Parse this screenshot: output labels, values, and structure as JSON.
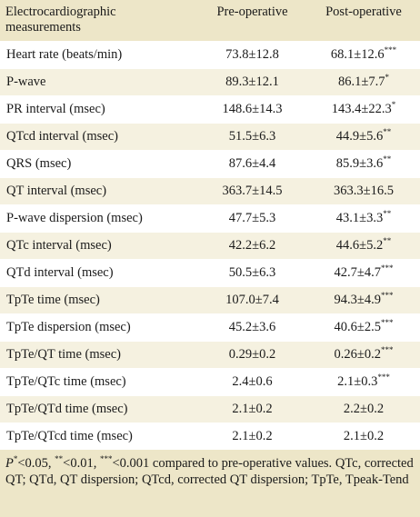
{
  "table": {
    "headers": [
      "Electrocardiographic measurements",
      "Pre-operative",
      "Post-operative"
    ],
    "rows": [
      {
        "label": "Heart rate (beats/min)",
        "pre": "73.8±12.8",
        "post": "68.1±12.6",
        "post_sup": "***"
      },
      {
        "label": "P-wave",
        "pre": "89.3±12.1",
        "post": "86.1±7.7",
        "post_sup": "*"
      },
      {
        "label": "PR interval (msec)",
        "pre": "148.6±14.3",
        "post": "143.4±22.3",
        "post_sup": "*"
      },
      {
        "label": "QTcd interval (msec)",
        "pre": "51.5±6.3",
        "post": "44.9±5.6",
        "post_sup": "**"
      },
      {
        "label": "QRS (msec)",
        "pre": "87.6±4.4",
        "post": "85.9±3.6",
        "post_sup": "**"
      },
      {
        "label": "QT interval (msec)",
        "pre": "363.7±14.5",
        "post": "363.3±16.5",
        "post_sup": ""
      },
      {
        "label": "P-wave dispersion (msec)",
        "pre": "47.7±5.3",
        "post": "43.1±3.3",
        "post_sup": "**"
      },
      {
        "label": "QTc interval (msec)",
        "pre": "42.2±6.2",
        "post": "44.6±5.2",
        "post_sup": "**"
      },
      {
        "label": "QTd interval (msec)",
        "pre": "50.5±6.3",
        "post": "42.7±4.7",
        "post_sup": "***"
      },
      {
        "label": "TpTe time (msec)",
        "pre": "107.0±7.4",
        "post": "94.3±4.9",
        "post_sup": "***"
      },
      {
        "label": "TpTe dispersion (msec)",
        "pre": "45.2±3.6",
        "post": "40.6±2.5",
        "post_sup": "***"
      },
      {
        "label": "TpTe/QT time (msec)",
        "pre": "0.29±0.2",
        "post": "0.26±0.2",
        "post_sup": "***"
      },
      {
        "label": "TpTe/QTc time (msec)",
        "pre": "2.4±0.6",
        "post": "2.1±0.3",
        "post_sup": "***"
      },
      {
        "label": "TpTe/QTd time (msec)",
        "pre": "2.1±0.2",
        "post": "2.2±0.2",
        "post_sup": ""
      },
      {
        "label": "TpTe/QTcd time (msec)",
        "pre": "2.1±0.2",
        "post": "2.1±0.2",
        "post_sup": ""
      }
    ]
  },
  "footnote": {
    "p1": "P",
    "s1": "*",
    "t1": "<0.05, ",
    "s2": "**",
    "t2": "<0.01, ",
    "s3": "***",
    "t3": "<0.001 compared to pre-operative values.",
    "line2": "QTc, corrected QT; QTd, QT dispersion; QTcd, corrected QT dispersion; TpTe, Tpeak-Tend"
  },
  "colors": {
    "header_bg": "#ede6c8",
    "row_alt_bg": "#f5f1e0",
    "row_bg": "#ffffff"
  }
}
